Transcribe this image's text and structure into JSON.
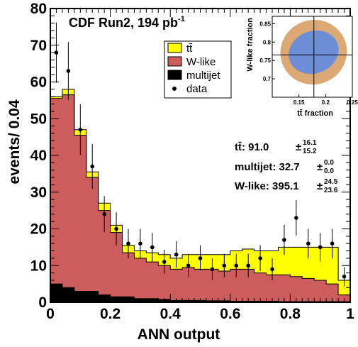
{
  "chart_data": [
    {
      "type": "bar",
      "stacked": true,
      "histogram": true,
      "title": "CDF Run2, 194 pb",
      "title_superscript": "-1",
      "xlabel": "ANN output",
      "ylabel": "events/ 0.04",
      "xlim": [
        0,
        1
      ],
      "ylim": [
        0,
        80
      ],
      "x_ticks": [
        "0",
        "0.2",
        "0.4",
        "0.6",
        "0.8",
        "1"
      ],
      "y_ticks": [
        "0",
        "10",
        "20",
        "30",
        "40",
        "50",
        "60",
        "70",
        "80"
      ],
      "bin_edges": [
        0,
        0.04,
        0.08,
        0.12,
        0.16,
        0.2,
        0.24,
        0.28,
        0.32,
        0.36,
        0.4,
        0.44,
        0.48,
        0.52,
        0.56,
        0.6,
        0.64,
        0.68,
        0.72,
        0.76,
        0.8,
        0.84,
        0.88,
        0.92,
        0.96,
        1.0
      ],
      "series": [
        {
          "name": "multijet",
          "color": "#000000",
          "values": [
            5.0,
            4.0,
            3.0,
            3.0,
            2.0,
            1.5,
            1.5,
            1.0,
            1.0,
            0.8,
            0.5,
            0.5,
            0.5,
            0.4,
            0.4,
            0.3,
            0.3,
            0.3,
            0.3,
            0.2,
            0.2,
            0.2,
            0.2,
            0.2,
            0.2
          ]
        },
        {
          "name": "W-like",
          "color": "#cd5c5c",
          "values": [
            50.5,
            52.5,
            42.5,
            31.0,
            23.0,
            17.5,
            12.0,
            11.0,
            10.0,
            9.2,
            8.5,
            9.0,
            8.5,
            8.6,
            8.1,
            8.7,
            8.7,
            7.7,
            7.2,
            7.3,
            6.8,
            6.3,
            5.8,
            4.8,
            1.8
          ]
        },
        {
          "name": "tt̄",
          "color": "#ffff00",
          "values": [
            0.5,
            1.5,
            1.5,
            1.5,
            2.0,
            2.0,
            2.0,
            2.0,
            2.5,
            3.0,
            3.0,
            3.5,
            4.0,
            4.0,
            4.5,
            5.0,
            5.5,
            6.0,
            6.5,
            7.5,
            8.0,
            8.5,
            9.0,
            10.0,
            4.0
          ]
        }
      ],
      "data_points": {
        "name": "data",
        "x": [
          0.02,
          0.06,
          0.1,
          0.14,
          0.18,
          0.22,
          0.26,
          0.3,
          0.34,
          0.38,
          0.42,
          0.46,
          0.5,
          0.54,
          0.58,
          0.62,
          0.66,
          0.7,
          0.74,
          0.78,
          0.82,
          0.86,
          0.9,
          0.94,
          0.98
        ],
        "y": [
          68,
          63,
          47,
          37,
          24,
          20,
          16,
          16,
          15,
          11,
          13,
          10,
          12,
          9,
          10,
          10,
          10,
          12,
          9,
          17,
          23,
          16,
          15,
          16,
          7
        ],
        "yerr": [
          8.2,
          7.9,
          6.9,
          6.1,
          4.9,
          4.5,
          4.0,
          4.0,
          3.9,
          3.3,
          3.6,
          3.2,
          3.5,
          3.0,
          3.2,
          3.2,
          3.2,
          3.5,
          3.0,
          4.1,
          4.8,
          4.0,
          3.9,
          4.0,
          2.6
        ]
      },
      "legend": {
        "placement": "top-right",
        "entries": [
          "tt̄",
          "W-like",
          "multijet",
          "data"
        ]
      },
      "fit_results": [
        {
          "label": "tt̄: 91.0",
          "plus": "16.1",
          "minus": "15.2"
        },
        {
          "label": "multijet: 32.7",
          "plus": "0.0",
          "minus": "0.0"
        },
        {
          "label": "W-like: 395.1",
          "plus": "24.5",
          "minus": "23.6"
        }
      ]
    },
    {
      "type": "contour",
      "xlabel": "tt̄ fraction",
      "ylabel": "W-like fraction",
      "xlim": [
        0.1,
        0.25
      ],
      "ylim": [
        0.65,
        0.87
      ],
      "x_ticks": [
        "0.15",
        "0.2",
        "0.25"
      ],
      "y_ticks": [
        "0.7",
        "0.75",
        "0.8",
        "0.85"
      ],
      "best_fit": {
        "x": 0.178,
        "y": 0.765
      },
      "contours": [
        {
          "level": "outer",
          "color": "#dca873",
          "x_range": [
            0.115,
            0.24
          ],
          "y_range": [
            0.685,
            0.86
          ]
        },
        {
          "level": "inner",
          "color": "#6b8ed6",
          "x_range": [
            0.13,
            0.225
          ],
          "y_range": [
            0.715,
            0.83
          ]
        }
      ]
    }
  ]
}
